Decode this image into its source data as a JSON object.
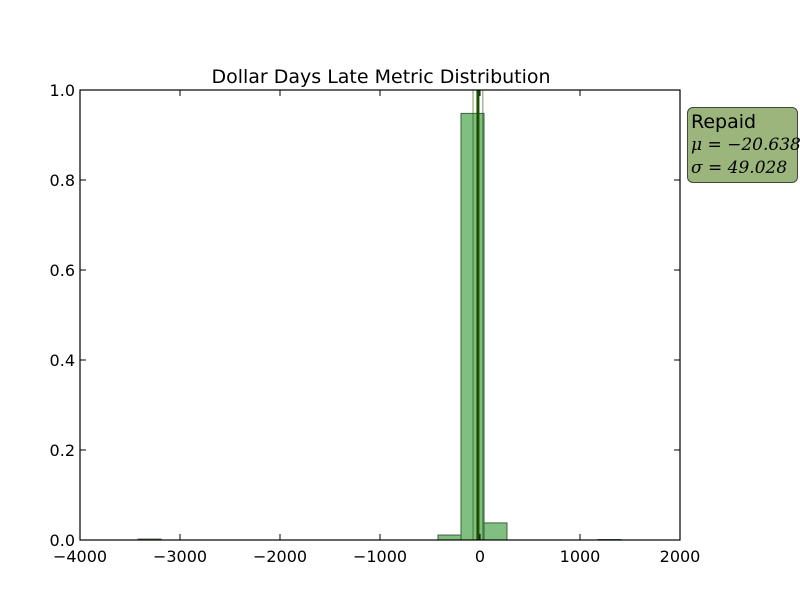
{
  "chart_data": {
    "type": "bar",
    "title": "Dollar Days Late Metric Distribution",
    "xlim": [
      -4000,
      2000
    ],
    "ylim": [
      0.0,
      1.0
    ],
    "xticks": [
      -4000,
      -3000,
      -2000,
      -1000,
      0,
      1000,
      2000
    ],
    "xtick_labels": [
      "−4000",
      "−3000",
      "−2000",
      "−1000",
      "0",
      "1000",
      "2000"
    ],
    "yticks": [
      0.0,
      0.2,
      0.4,
      0.6,
      0.8,
      1.0
    ],
    "ytick_labels": [
      "0.0",
      "0.2",
      "0.4",
      "0.6",
      "0.8",
      "1.0"
    ],
    "bins": [
      {
        "x0": -3420,
        "x1": -3190,
        "value": 0.002
      },
      {
        "x0": -420,
        "x1": -190,
        "value": 0.011
      },
      {
        "x0": -190,
        "x1": 40,
        "value": 0.948
      },
      {
        "x0": 40,
        "x1": 270,
        "value": 0.038
      },
      {
        "x0": 1180,
        "x1": 1410,
        "value": 0.001
      }
    ],
    "mean_line": -20.638,
    "std_lines": [
      -69.666,
      28.39
    ],
    "bar_color": "#7fbf7f",
    "bar_edge_color": "#3f5f3f",
    "line_color": "#1a4d00",
    "grid": false,
    "legend": {
      "position": "right",
      "label": "Repaid",
      "mu_text": "μ = −20.638",
      "sigma_text": "σ = 49.028",
      "background": "#9bb57c"
    }
  }
}
